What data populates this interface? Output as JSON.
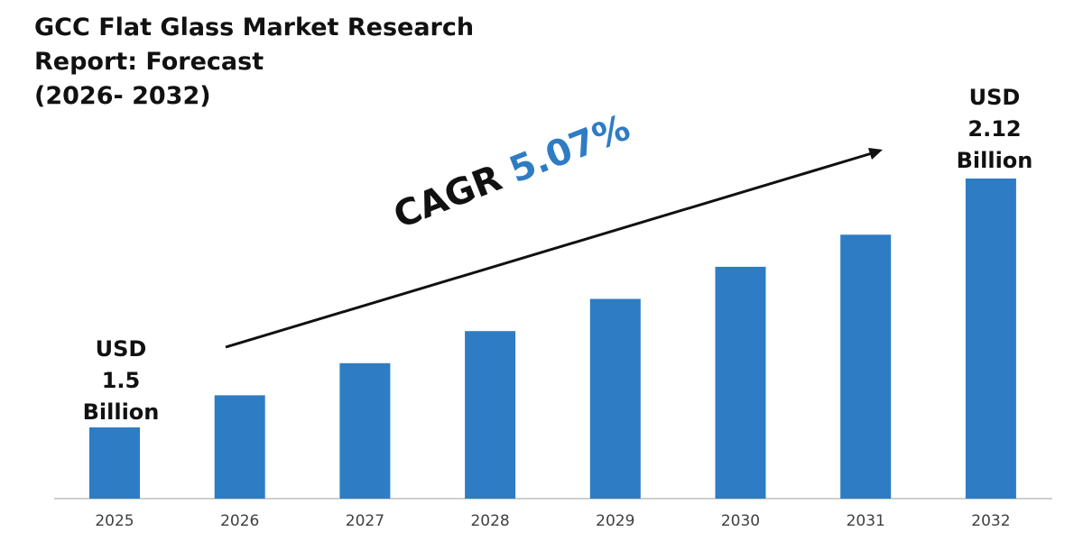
{
  "title_lines": [
    "GCC Flat Glass Market Research",
    "Report: Forecast",
    "(2026- 2032)"
  ],
  "callouts": {
    "start": {
      "lines": [
        "USD",
        "1.5",
        "Billion"
      ]
    },
    "end": {
      "lines": [
        "USD",
        "2.12",
        "Billion"
      ]
    }
  },
  "cagr": {
    "label": "CAGR",
    "value": "5.07%"
  },
  "colors": {
    "bar": "#2e7cc4",
    "accent": "#2e7cc4",
    "text": "#111111",
    "axis": "#bfbfbf"
  },
  "chart_data": {
    "type": "bar",
    "categories": [
      "2025",
      "2026",
      "2027",
      "2028",
      "2029",
      "2030",
      "2031",
      "2032"
    ],
    "values": [
      1.5,
      1.58,
      1.66,
      1.74,
      1.82,
      1.9,
      1.98,
      2.12
    ],
    "title": "GCC Flat Glass Market Research Report: Forecast (2026- 2032)",
    "xlabel": "",
    "ylabel": "",
    "unit": "USD Billion",
    "grid": false,
    "legend": "none"
  }
}
